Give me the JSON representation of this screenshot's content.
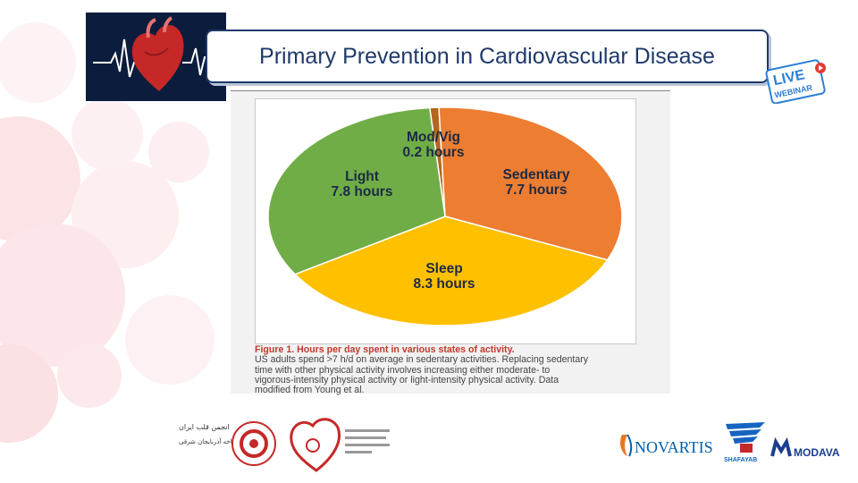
{
  "header": {
    "title": "Primary Prevention in Cardiovascular Disease",
    "live_badge": {
      "line1": "LIVE",
      "line2": "WEBINAR"
    }
  },
  "chart_data": {
    "type": "pie",
    "unit": "hours",
    "slices": [
      {
        "name": "Mod/Vig",
        "value": 0.2,
        "label": "Mod/Vig",
        "value_label": "0.2 hours",
        "color": "#b5651d"
      },
      {
        "name": "Sedentary",
        "value": 7.7,
        "label": "Sedentary",
        "value_label": "7.7 hours",
        "color": "#ed7d31"
      },
      {
        "name": "Sleep",
        "value": 8.3,
        "label": "Sleep",
        "value_label": "8.3 hours",
        "color": "#ffc000"
      },
      {
        "name": "Light",
        "value": 7.8,
        "label": "Light",
        "value_label": "7.8 hours",
        "color": "#70ad47"
      }
    ]
  },
  "caption": {
    "title": "Figure 1. Hours per day spent in various states of activity.",
    "lines": [
      "US adults spend >7 h/d on average in sedentary activities. Replacing sedentary",
      "time with other physical activity involves increasing either moderate- to",
      "vigorous-intensity physical activity or light-intensity physical activity. Data",
      "modified from Young et al."
    ]
  },
  "sponsors": {
    "novartis": "NOVARTIS",
    "shafayab": "SHAFAYAB",
    "modava": "MODAVA",
    "arabic_line1": "انجمن قلب ایران",
    "arabic_line2": "شاخه آذربایجان شرقی"
  },
  "colors": {
    "title_border": "#1f3a6b",
    "logo_bg": "#0b1c3d",
    "live_blue": "#2a7fd4",
    "live_red": "#e53935"
  }
}
